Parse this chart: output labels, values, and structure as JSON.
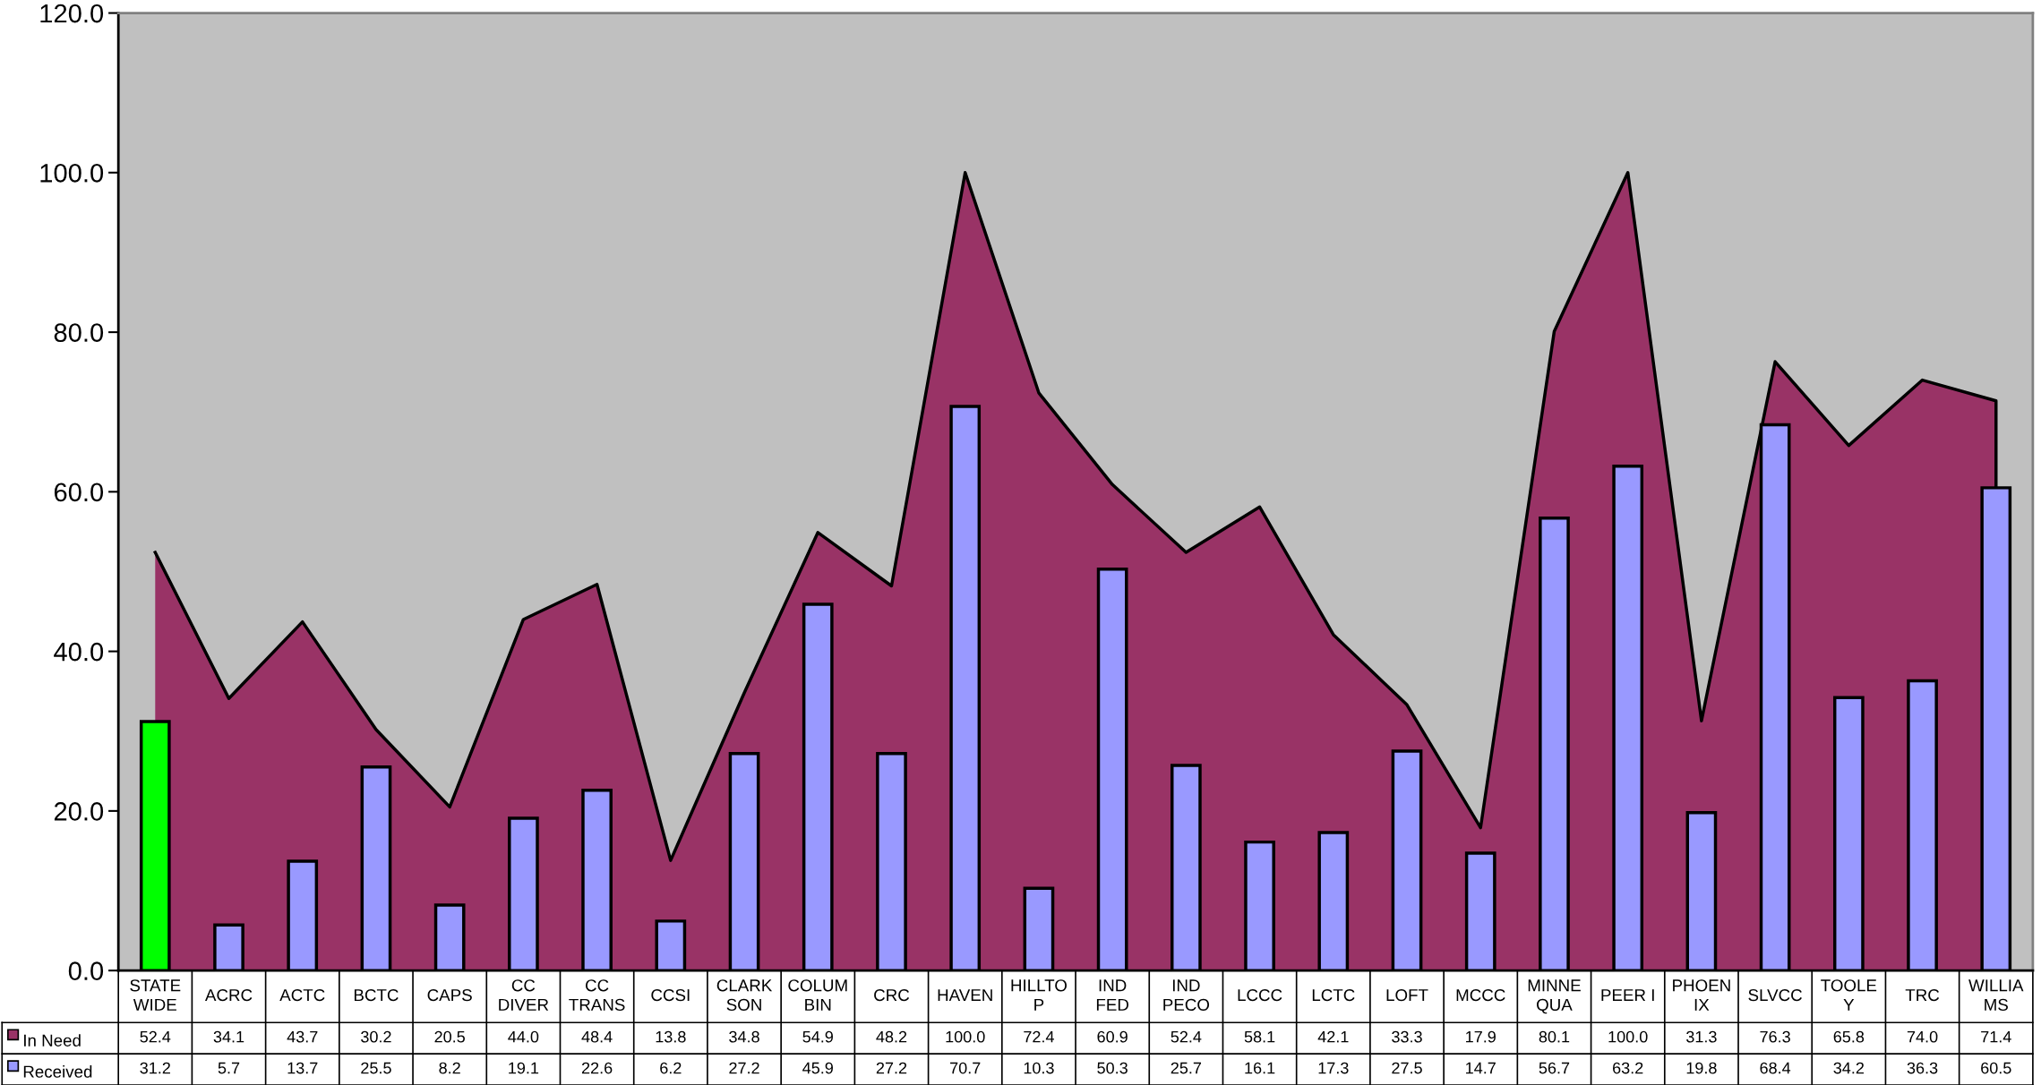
{
  "chart_data": {
    "type": "bar",
    "categories": [
      "STATE\nWIDE",
      "ACRC",
      "ACTC",
      "BCTC",
      "CAPS",
      "CC\nDIVER",
      "CC\nTRANS",
      "CCSI",
      "CLARK\nSON",
      "COLUM\nBIN",
      "CRC",
      "HAVEN",
      "HILLTO\nP",
      "IND\nFED",
      "IND\nPECO",
      "LCCC",
      "LCTC",
      "LOFT",
      "MCCC",
      "MINNE\nQUA",
      "PEER I",
      "PHOEN\nIX",
      "SLVCC",
      "TOOLE\nY",
      "TRC",
      "WILLIA\nMS"
    ],
    "series": [
      {
        "name": "In Need",
        "type": "area",
        "color": "#993366",
        "values": [
          52.4,
          34.1,
          43.7,
          30.2,
          20.5,
          44.0,
          48.4,
          13.8,
          34.8,
          54.9,
          48.2,
          100.0,
          72.4,
          60.9,
          52.4,
          58.1,
          42.1,
          33.3,
          17.9,
          80.1,
          100.0,
          31.3,
          76.3,
          65.8,
          74.0,
          71.4
        ],
        "value_labels": [
          "52.4",
          "34.1",
          "43.7",
          "30.2",
          "20.5",
          "44.0",
          "48.4",
          "13.8",
          "34.8",
          "54.9",
          "48.2",
          "100.0",
          "72.4",
          "60.9",
          "52.4",
          "58.1",
          "42.1",
          "33.3",
          "17.9",
          "80.1",
          "100.0",
          "31.3",
          "76.3",
          "65.8",
          "74.0",
          "71.4"
        ]
      },
      {
        "name": "Received",
        "color": "#9999ff",
        "colors": [
          "#00ff00",
          "#9999ff",
          "#9999ff",
          "#9999ff",
          "#9999ff",
          "#9999ff",
          "#9999ff",
          "#9999ff",
          "#9999ff",
          "#9999ff",
          "#9999ff",
          "#9999ff",
          "#9999ff",
          "#9999ff",
          "#9999ff",
          "#9999ff",
          "#9999ff",
          "#9999ff",
          "#9999ff",
          "#9999ff",
          "#9999ff",
          "#9999ff",
          "#9999ff",
          "#9999ff",
          "#9999ff",
          "#9999ff"
        ],
        "values": [
          31.2,
          5.7,
          13.7,
          25.5,
          8.2,
          19.1,
          22.6,
          6.2,
          27.2,
          45.9,
          27.2,
          70.7,
          10.3,
          50.3,
          25.7,
          16.1,
          17.3,
          27.5,
          14.7,
          56.7,
          63.2,
          19.8,
          68.4,
          34.2,
          36.3,
          60.5
        ],
        "value_labels": [
          "31.2",
          "5.7",
          "13.7",
          "25.5",
          "8.2",
          "19.1",
          "22.6",
          "6.2",
          "27.2",
          "45.9",
          "27.2",
          "70.7",
          "10.3",
          "50.3",
          "25.7",
          "16.1",
          "17.3",
          "27.5",
          "14.7",
          "56.7",
          "63.2",
          "19.8",
          "68.4",
          "34.2",
          "36.3",
          "60.5"
        ]
      }
    ],
    "ylim": [
      0,
      120
    ],
    "yticks": [
      {
        "value": 0,
        "label": "0.0"
      },
      {
        "value": 20,
        "label": "20.0"
      },
      {
        "value": 40,
        "label": "40.0"
      },
      {
        "value": 60,
        "label": "60.0"
      },
      {
        "value": 80,
        "label": "80.0"
      },
      {
        "value": 100,
        "label": "100.0"
      },
      {
        "value": 120,
        "label": "120.0"
      }
    ],
    "legend": "bottom left",
    "grid": false
  }
}
